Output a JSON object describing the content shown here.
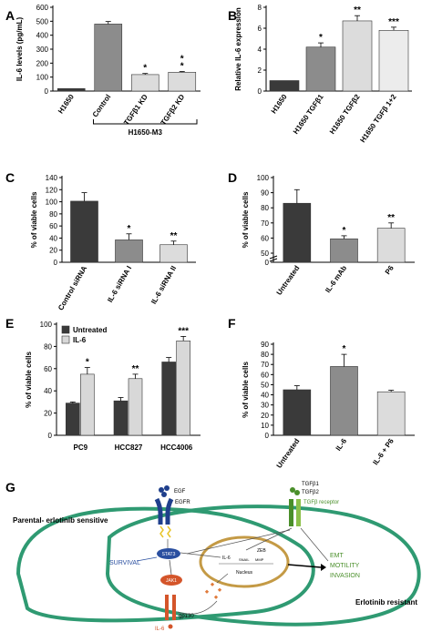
{
  "chart_data": [
    {
      "panel": "A",
      "type": "bar",
      "ylabel": "IL-6 levels (pg/mL)",
      "ylim": [
        0,
        600
      ],
      "yticks": [
        0,
        100,
        200,
        300,
        400,
        500,
        600
      ],
      "categories": [
        "H1650",
        "Control",
        "TGFβ1 KD",
        "TGFβ2 KD"
      ],
      "values": [
        18,
        480,
        118,
        135
      ],
      "errors": [
        0,
        18,
        8,
        5
      ],
      "significance": [
        "",
        "",
        "*",
        "*\n*"
      ],
      "colors": [
        "#3a3a3a",
        "#8c8c8c",
        "#dcdcdc",
        "#dcdcdc"
      ],
      "group_label": "H1650-M3"
    },
    {
      "panel": "B",
      "type": "bar",
      "ylabel": "Relative IL-6 expression",
      "ylim": [
        0,
        8
      ],
      "yticks": [
        0,
        2,
        4,
        6,
        8
      ],
      "categories": [
        "H1650",
        "H1650 TGFβ1",
        "H1650 TGFβ2",
        "H1650 TGFβ 1+2"
      ],
      "values": [
        1,
        4.2,
        6.7,
        5.8
      ],
      "errors": [
        0,
        0.4,
        0.5,
        0.3
      ],
      "significance": [
        "",
        "*",
        "**",
        "***"
      ],
      "colors": [
        "#3a3a3a",
        "#8c8c8c",
        "#dcdcdc",
        "#ececec"
      ]
    },
    {
      "panel": "C",
      "type": "bar",
      "ylabel": "% of viable cells",
      "ylim": [
        0,
        140
      ],
      "yticks": [
        0,
        20,
        40,
        60,
        80,
        100,
        120,
        140
      ],
      "categories": [
        "Control siRNA",
        "IL-6 siRNA I",
        "IL-6 siRNA II"
      ],
      "values": [
        101,
        37,
        29
      ],
      "errors": [
        14,
        10,
        6
      ],
      "significance": [
        "",
        "*",
        "**"
      ],
      "colors": [
        "#3a3a3a",
        "#8c8c8c",
        "#dcdcdc"
      ]
    },
    {
      "panel": "D",
      "type": "bar",
      "ylabel": "% of viable cells",
      "ylim": [
        0,
        100
      ],
      "yticks": [
        0,
        50,
        60,
        70,
        80,
        90,
        100
      ],
      "categories": [
        "Untreated",
        "IL-6 mAb",
        "P6"
      ],
      "values": [
        83,
        59.5,
        66.5
      ],
      "errors": [
        9,
        2,
        3.5
      ],
      "significance": [
        "",
        "*",
        "**"
      ],
      "colors": [
        "#3a3a3a",
        "#8c8c8c",
        "#dcdcdc"
      ]
    },
    {
      "panel": "E",
      "type": "bar",
      "ylabel": "% of viable cells",
      "ylim": [
        0,
        100
      ],
      "yticks": [
        0,
        20,
        40,
        60,
        80,
        100
      ],
      "categories": [
        "PC9",
        "HCC827",
        "HCC4006"
      ],
      "series": [
        {
          "name": "Untreated",
          "values": [
            29,
            31,
            66
          ],
          "errors": [
            1,
            3,
            4
          ],
          "color": "#3a3a3a"
        },
        {
          "name": "IL-6",
          "values": [
            55,
            51,
            85
          ],
          "errors": [
            6,
            4,
            4
          ],
          "color": "#d8d8d8"
        }
      ],
      "significance": [
        "*",
        "**",
        "***"
      ],
      "legend": "top-left"
    },
    {
      "panel": "F",
      "type": "bar",
      "ylabel": "% of viable cells",
      "ylim": [
        0,
        90
      ],
      "yticks": [
        0,
        10,
        20,
        30,
        40,
        50,
        60,
        70,
        80,
        90
      ],
      "categories": [
        "Untreated",
        "IL-6",
        "IL-6 + P6"
      ],
      "values": [
        45,
        68,
        43
      ],
      "errors": [
        4,
        12,
        1.5
      ],
      "significance": [
        "",
        "*",
        ""
      ],
      "colors": [
        "#3a3a3a",
        "#8c8c8c",
        "#dcdcdc"
      ]
    }
  ],
  "diagram": {
    "panel": "G",
    "labels": {
      "egf": "EGF",
      "egfr": "EGFR",
      "tgfb1": "TGFβ1",
      "tgfb2": "TGFβ2",
      "tgfb_receptor": "TGFβ receptor",
      "sensitive": "Parental- erlotinib sensitive",
      "resistant": "Erlotinib resistant",
      "stat3": "STAT3",
      "jak1": "JAK1",
      "survival": "SURVIVAL",
      "gp130": "gp130",
      "il6_bottom": "IL-6",
      "il6_gene": "IL-6",
      "zeb": "ZEB",
      "snail": "SNAIL",
      "mmp": "MMP",
      "nucleus": "Nucleus",
      "emt": "EMT",
      "motility": "MOTILITY",
      "invasion": "INVASION"
    },
    "colors": {
      "cell": "#2f9a72",
      "nucleus": "#c49a45",
      "stat3": "#2a4fa0",
      "jak1": "#d4552a",
      "receptor": "#1f3f8c",
      "tgf": "#4a8f2a",
      "emt_text": "#4a8f2a"
    }
  }
}
